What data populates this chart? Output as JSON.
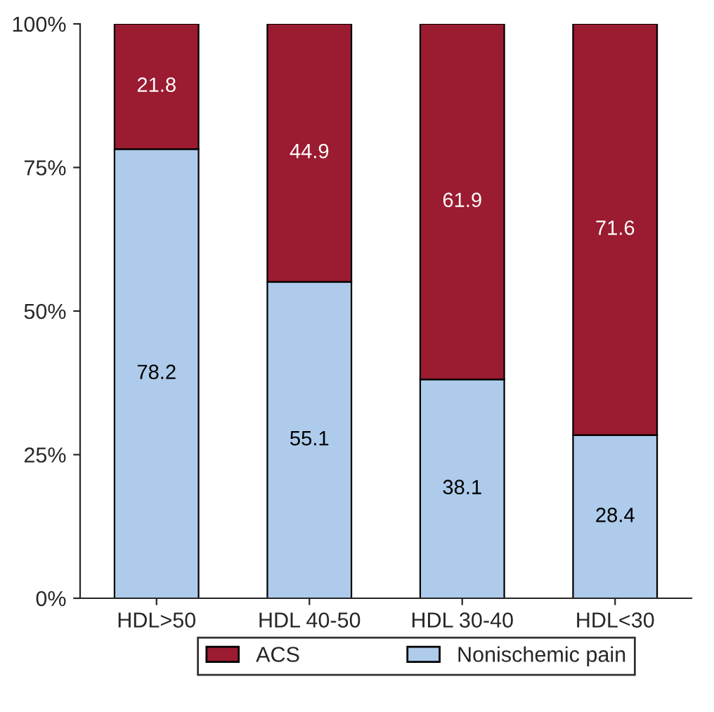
{
  "chart_data": {
    "type": "bar",
    "stacked": true,
    "categories": [
      "HDL>50",
      "HDL 40-50",
      "HDL 30-40",
      "HDL<30"
    ],
    "series": [
      {
        "name": "Nonischemic pain",
        "color": "#aecbeb",
        "values": [
          78.2,
          55.1,
          38.1,
          28.4
        ]
      },
      {
        "name": "ACS",
        "color": "#9b1b30",
        "values": [
          21.8,
          44.9,
          61.9,
          71.6
        ]
      }
    ],
    "ylim": [
      0,
      100
    ],
    "yticks": [
      {
        "value": 0,
        "label": "0%"
      },
      {
        "value": 25,
        "label": "25%"
      },
      {
        "value": 50,
        "label": "50%"
      },
      {
        "value": 75,
        "label": "75%"
      },
      {
        "value": 100,
        "label": "100%"
      }
    ],
    "data_labels": true,
    "legend": "bottom",
    "grid": false
  }
}
